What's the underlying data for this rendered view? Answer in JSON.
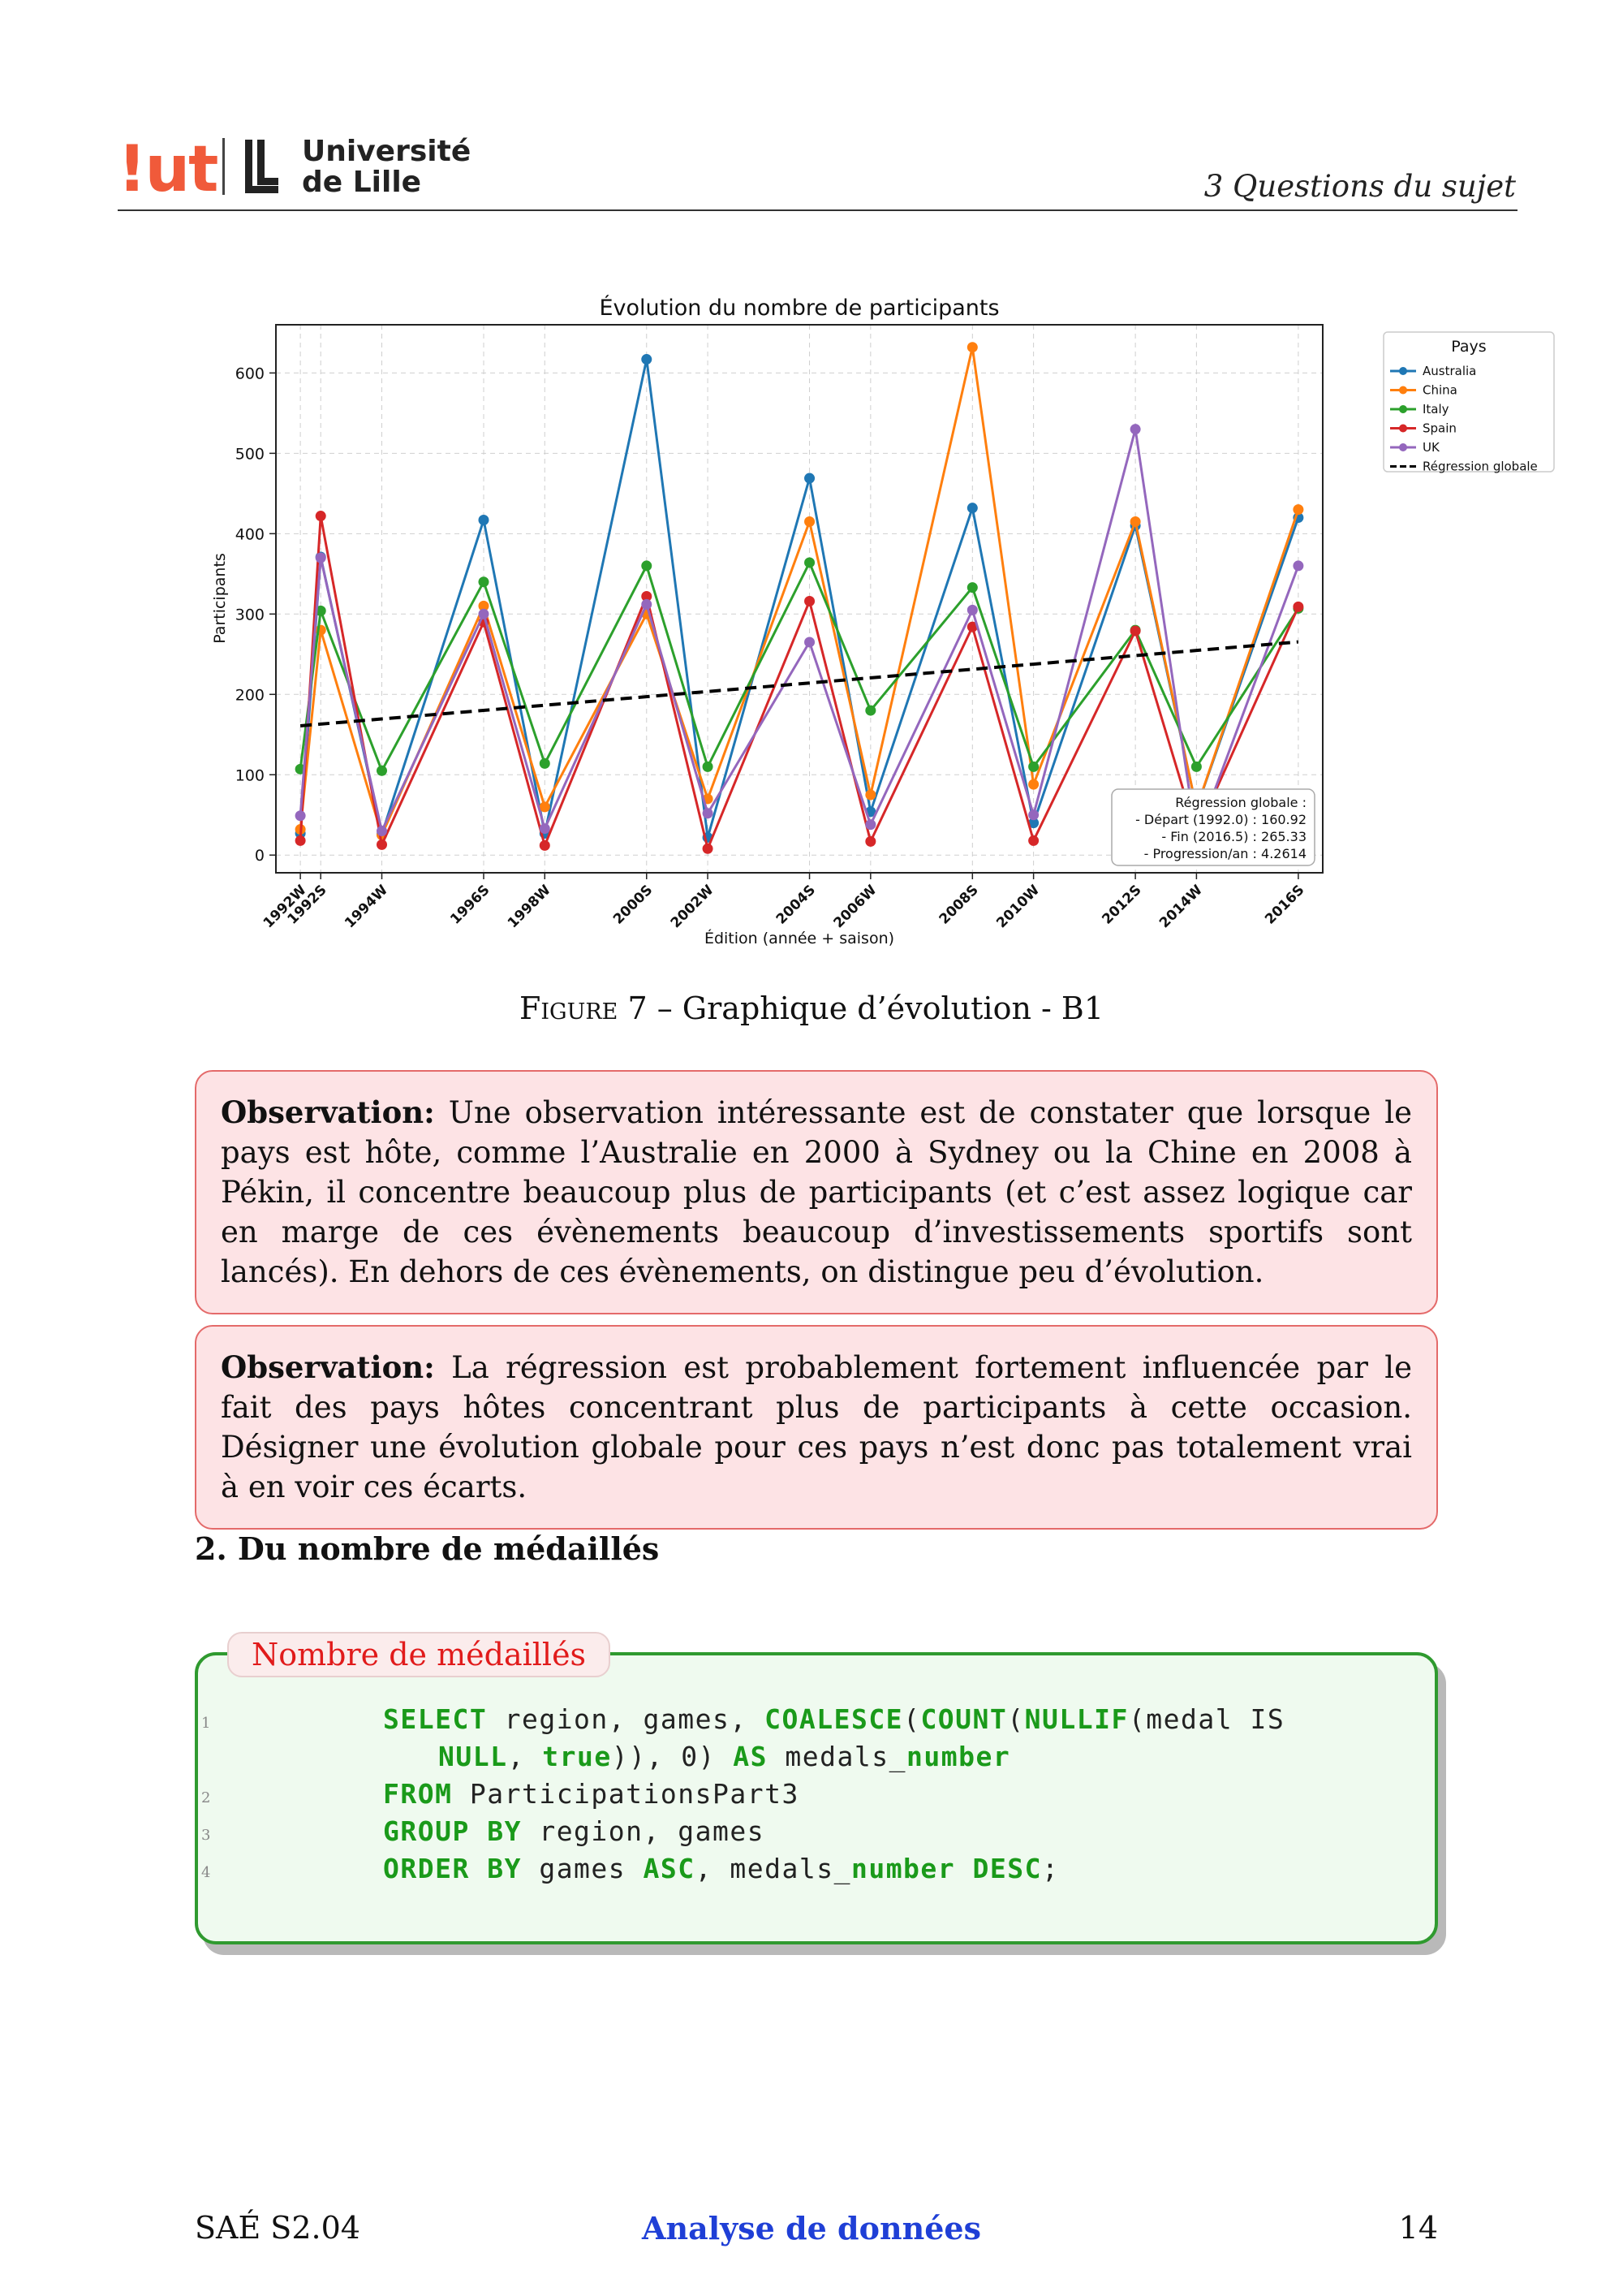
{
  "header": {
    "logo_iut": "!ut",
    "logo_univ_line1": "Université",
    "logo_univ_line2": "de Lille",
    "section": "3   Questions du sujet"
  },
  "chart_data": {
    "type": "line",
    "title": "Évolution du nombre de participants",
    "xlabel": "Édition (année + saison)",
    "ylabel": "Participants",
    "x": [
      1992.0,
      1992.5,
      1994.0,
      1996.5,
      1998.0,
      2000.5,
      2002.0,
      2004.5,
      2006.0,
      2008.5,
      2010.0,
      2012.5,
      2014.0,
      2016.5
    ],
    "categories": [
      "1992W",
      "1992S",
      "1994W",
      "1996S",
      "1998W",
      "2000S",
      "2002W",
      "2004S",
      "2006W",
      "2008S",
      "2010W",
      "2012S",
      "2014W",
      "2016S"
    ],
    "ylim": [
      -22,
      660
    ],
    "yticks": [
      0,
      100,
      200,
      300,
      400,
      500,
      600
    ],
    "grid": true,
    "legend_title": "Pays",
    "legend_position": "outside-top-right",
    "series": [
      {
        "name": "Australia",
        "color": "#1f77b4",
        "values": [
          27,
          371,
          26,
          417,
          27,
          617,
          22,
          469,
          54,
          432,
          40,
          410,
          58,
          420
        ]
      },
      {
        "name": "China",
        "color": "#ff7f0e",
        "values": [
          32,
          280,
          25,
          310,
          60,
          300,
          70,
          415,
          75,
          632,
          88,
          415,
          58,
          430
        ]
      },
      {
        "name": "Italy",
        "color": "#2ca02c",
        "values": [
          107,
          304,
          105,
          340,
          114,
          360,
          110,
          364,
          180,
          333,
          110,
          280,
          110,
          307
        ]
      },
      {
        "name": "Spain",
        "color": "#d62728",
        "values": [
          18,
          422,
          13,
          290,
          12,
          322,
          8,
          316,
          17,
          284,
          18,
          279,
          27,
          309
        ]
      },
      {
        "name": "UK",
        "color": "#9467bd",
        "values": [
          49,
          370,
          30,
          300,
          33,
          312,
          52,
          265,
          38,
          305,
          50,
          530,
          20,
          360
        ]
      }
    ],
    "regression": {
      "name": "Régression globale",
      "color": "#000000",
      "x": [
        1992.0,
        2016.5
      ],
      "values": [
        160.92,
        265.33
      ]
    },
    "annotation": [
      "Régression globale :",
      "- Départ (1992.0) : 160.92",
      "- Fin (2016.5) : 265.33",
      "- Progression/an : 4.2614"
    ]
  },
  "caption": {
    "figure_label": "Figure 7",
    "text": " – Graphique d’évolution - B1"
  },
  "observations": [
    {
      "label": "Observation:",
      "text": " Une observation intéressante est de constater que lorsque le pays est hôte, comme l’Australie en 2000 à Sydney ou la Chine en 2008 à Pékin, il concentre beaucoup plus de participants (et c’est assez logique car en marge de ces évènements beaucoup d’investissements sportifs sont lancés). En dehors de ces évènements, on distingue peu d’évolution."
    },
    {
      "label": "Observation:",
      "text": " La régression est probablement fortement influencée par le fait des pays hôtes concentrant plus de participants à cette occasion. Désigner une évolution globale pour ces pays n’est donc pas totalement vrai à en voir ces écarts."
    }
  ],
  "section_title": "2. Du nombre de médaillés",
  "code": {
    "title": "Nombre de médaillés",
    "line_numbers": [
      "1",
      "2",
      "3",
      "4"
    ]
  },
  "footer": {
    "left": "SAÉ S2.04",
    "center": "Analyse de données",
    "right": "14"
  }
}
